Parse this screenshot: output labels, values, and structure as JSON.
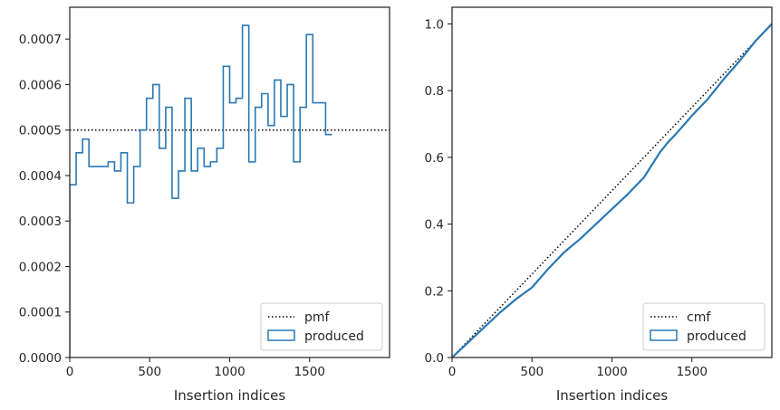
{
  "colors": {
    "produced": "#2878b5",
    "reference": "#000000",
    "axes": "#262626"
  },
  "chart_data": [
    {
      "type": "histogram",
      "title": "",
      "xlabel": "Insertion indices",
      "ylabel": "",
      "xlim": [
        0,
        2000
      ],
      "ylim": [
        0,
        0.00077
      ],
      "xticks": [
        "0",
        "500",
        "1000",
        "1500"
      ],
      "yticks": [
        "0.0000",
        "0.0001",
        "0.0002",
        "0.0003",
        "0.0004",
        "0.0005",
        "0.0006",
        "0.0007"
      ],
      "legend": {
        "placement": "lower right",
        "entries": [
          "pmf",
          "produced"
        ]
      },
      "reference_line": {
        "name": "pmf",
        "style": "dotted",
        "y": 0.0005
      },
      "bin_width": 40,
      "bin_edges_start": 0,
      "values": [
        0.00038,
        0.00045,
        0.00048,
        0.00042,
        0.00042,
        0.00042,
        0.00043,
        0.00041,
        0.00045,
        0.00034,
        0.00042,
        0.0005,
        0.00057,
        0.0006,
        0.00046,
        0.00055,
        0.00035,
        0.00041,
        0.00057,
        0.00041,
        0.00046,
        0.00042,
        0.00043,
        0.00046,
        0.00064,
        0.00056,
        0.00057,
        0.00073,
        0.00043,
        0.00055,
        0.00058,
        0.00051,
        0.00061,
        0.00053,
        0.0006,
        0.00043,
        0.00055,
        0.00071,
        0.00056,
        0.00056,
        0.00049
      ],
      "series": [
        {
          "name": "produced",
          "style": "step"
        }
      ]
    },
    {
      "type": "line",
      "title": "",
      "xlabel": "Insertion indices",
      "ylabel": "",
      "xlim": [
        0,
        2000
      ],
      "ylim": [
        0,
        1.05
      ],
      "xticks": [
        "0",
        "500",
        "1000",
        "1500"
      ],
      "yticks": [
        "0.0",
        "0.2",
        "0.4",
        "0.6",
        "0.8",
        "1.0"
      ],
      "legend": {
        "placement": "lower right",
        "entries": [
          "cmf",
          "produced"
        ]
      },
      "reference_line": {
        "name": "cmf",
        "style": "dotted",
        "from": [
          0,
          0
        ],
        "to": [
          2000,
          1.0
        ]
      },
      "series": [
        {
          "name": "produced",
          "x": [
            0,
            100,
            200,
            300,
            400,
            500,
            600,
            700,
            800,
            900,
            1000,
            1100,
            1200,
            1300,
            1350,
            1400,
            1500,
            1600,
            1700,
            1800,
            1900,
            2000
          ],
          "y": [
            0,
            0.045,
            0.09,
            0.135,
            0.175,
            0.21,
            0.265,
            0.315,
            0.355,
            0.4,
            0.445,
            0.49,
            0.54,
            0.615,
            0.645,
            0.67,
            0.725,
            0.775,
            0.835,
            0.89,
            0.95,
            1.0
          ]
        }
      ]
    }
  ]
}
